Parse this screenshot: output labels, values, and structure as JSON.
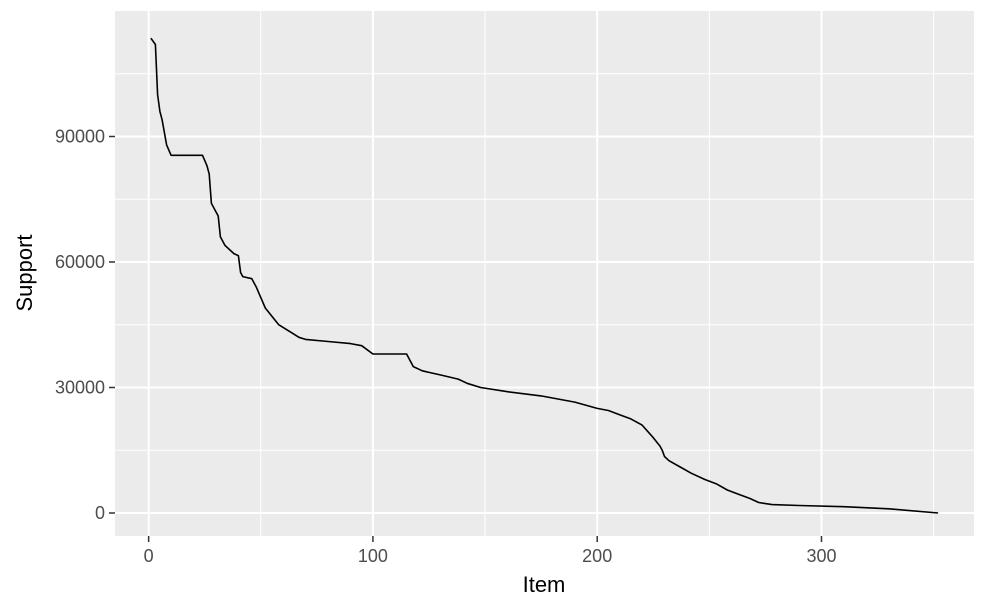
{
  "chart_data": {
    "type": "line",
    "title": "",
    "xlabel": "Item",
    "ylabel": "Support",
    "xlim": [
      -15,
      368
    ],
    "ylim": [
      -5500,
      120000
    ],
    "x_ticks": [
      0,
      100,
      200,
      300
    ],
    "y_ticks": [
      0,
      30000,
      60000,
      90000
    ],
    "x_tick_labels": [
      "0",
      "100",
      "200",
      "300"
    ],
    "y_tick_labels": [
      "0",
      "30000",
      "60000",
      "90000"
    ],
    "grid": true,
    "legend": "none",
    "colors": {
      "panel": "#ebebeb",
      "grid": "#ffffff",
      "line": "#000000",
      "tick_text": "#4d4d4d",
      "tick_mark": "#333333"
    },
    "series": [
      {
        "x": [
          1,
          3,
          4,
          5,
          6,
          8,
          10,
          11,
          24,
          26,
          27,
          28,
          31,
          32,
          34,
          38,
          40,
          41,
          42,
          46,
          48,
          50,
          52,
          55,
          58,
          61,
          64,
          67,
          70,
          80,
          90,
          95,
          100,
          115,
          118,
          122,
          126,
          130,
          138,
          142,
          148,
          160,
          175,
          190,
          200,
          205,
          210,
          215,
          220,
          225,
          228,
          229,
          230,
          232,
          237,
          242,
          248,
          253,
          258,
          263,
          268,
          272,
          278,
          290,
          310,
          330,
          352
        ],
        "y": [
          113500,
          112000,
          100000,
          96000,
          94000,
          88000,
          85500,
          85500,
          85500,
          83000,
          81000,
          74000,
          71000,
          66000,
          64000,
          62000,
          61500,
          57500,
          56500,
          56000,
          54000,
          51500,
          49000,
          47000,
          45000,
          44000,
          43000,
          42000,
          41500,
          41000,
          40500,
          40000,
          38000,
          38000,
          35000,
          34000,
          33500,
          33000,
          32000,
          31000,
          30000,
          29000,
          28000,
          26500,
          25000,
          24500,
          23500,
          22500,
          21000,
          18000,
          16000,
          15000,
          13500,
          12500,
          11000,
          9500,
          8000,
          7000,
          5500,
          4500,
          3500,
          2500,
          2000,
          1800,
          1500,
          1000,
          0
        ]
      }
    ]
  }
}
